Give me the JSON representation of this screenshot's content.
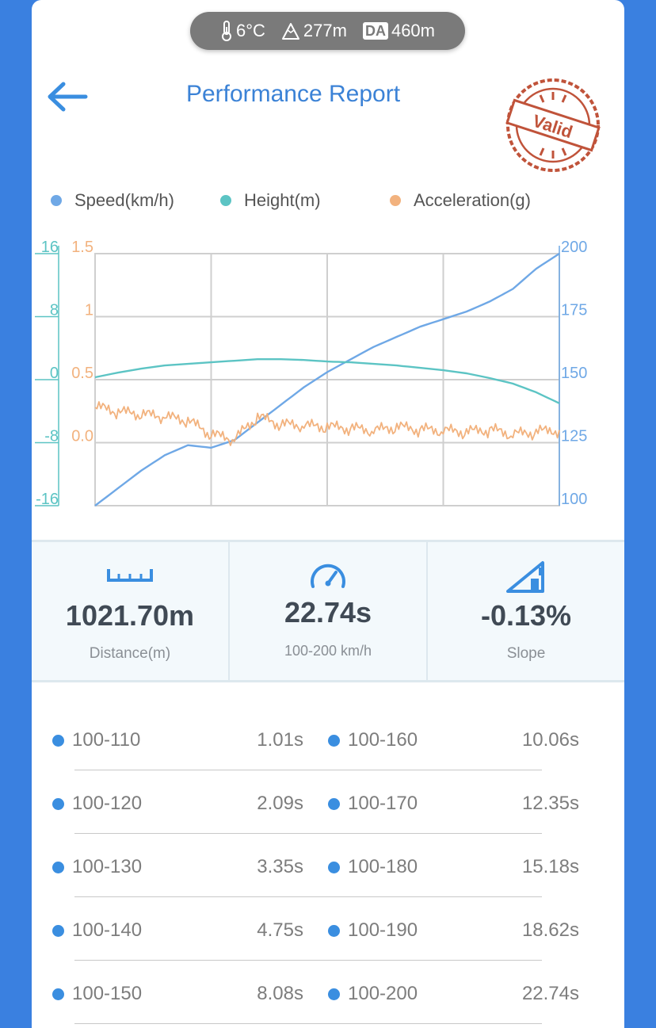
{
  "status_bar": {
    "temperature": "6°C",
    "altitude": "277m",
    "da_label": "DA",
    "density_altitude": "460m"
  },
  "header": {
    "title": "Performance Report",
    "stamp_text": "Valid"
  },
  "legend": {
    "speed": "Speed(km/h)",
    "height": "Height(m)",
    "acceleration": "Acceleration(g)"
  },
  "colors": {
    "speed": "#6fa8e6",
    "height": "#5cc4c4",
    "acceleration": "#f2b27e",
    "accent": "#3b82d6",
    "stamp": "#c0533a"
  },
  "chart_data": {
    "type": "line",
    "x": [
      0,
      1,
      2,
      3,
      4,
      5,
      6,
      7,
      8,
      9,
      10,
      11,
      12,
      13,
      14,
      15,
      16,
      17,
      18,
      19,
      20
    ],
    "series": [
      {
        "name": "Speed(km/h)",
        "axis": "right",
        "values": [
          100,
          107,
          114,
          120,
          124,
          123,
          126,
          133,
          140,
          147,
          153,
          158,
          163,
          167,
          171,
          174,
          177,
          181,
          186,
          194,
          200
        ]
      },
      {
        "name": "Height(m)",
        "axis": "left-outer",
        "values": [
          0.3,
          0.9,
          1.4,
          1.8,
          2.0,
          2.2,
          2.4,
          2.6,
          2.6,
          2.5,
          2.3,
          2.2,
          2.0,
          1.8,
          1.5,
          1.2,
          0.8,
          0.2,
          -0.5,
          -1.6,
          -3.0
        ]
      },
      {
        "name": "Acceleration(g)",
        "axis": "left-inner",
        "values": [
          0.28,
          0.24,
          0.22,
          0.2,
          0.17,
          0.06,
          0.02,
          0.2,
          0.14,
          0.13,
          0.12,
          0.11,
          0.09,
          0.12,
          0.1,
          0.09,
          0.08,
          0.1,
          0.06,
          0.08,
          0.1
        ]
      }
    ],
    "axes": {
      "left_outer": {
        "ticks": [
          "16",
          "8",
          "0",
          "-8",
          "-16"
        ],
        "range": [
          -16,
          16
        ]
      },
      "left_inner": {
        "ticks": [
          "1.5",
          "1",
          "0.5",
          "0.0"
        ],
        "range": [
          -0.5,
          1.5
        ]
      },
      "right": {
        "ticks": [
          "200",
          "175",
          "150",
          "125",
          "100"
        ],
        "range": [
          100,
          200
        ]
      }
    },
    "grid": true,
    "legend_position": "top"
  },
  "stats": [
    {
      "value": "1021.70m",
      "label": "Distance(m)",
      "icon": "ruler-icon"
    },
    {
      "value": "22.74s",
      "label": "100-200 km/h",
      "icon": "speedometer-icon"
    },
    {
      "value": "-0.13%",
      "label": "Slope",
      "icon": "slope-icon"
    }
  ],
  "splits": [
    {
      "left_range": "100-110",
      "left_time": "1.01s",
      "right_range": "100-160",
      "right_time": "10.06s"
    },
    {
      "left_range": "100-120",
      "left_time": "2.09s",
      "right_range": "100-170",
      "right_time": "12.35s"
    },
    {
      "left_range": "100-130",
      "left_time": "3.35s",
      "right_range": "100-180",
      "right_time": "15.18s"
    },
    {
      "left_range": "100-140",
      "left_time": "4.75s",
      "right_range": "100-190",
      "right_time": "18.62s"
    },
    {
      "left_range": "100-150",
      "left_time": "8.08s",
      "right_range": "100-200",
      "right_time": "22.74s"
    }
  ]
}
